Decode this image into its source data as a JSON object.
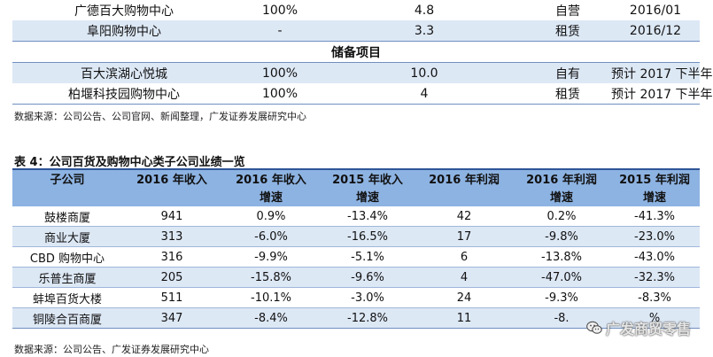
{
  "top_table": {
    "rows": [
      {
        "name": "广德百大购物中心",
        "stake": "100%",
        "area": "4.8",
        "ownership": "自营",
        "opened": "2016/01",
        "style": "white"
      },
      {
        "name": "阜阳购物中心",
        "stake": "-",
        "area": "3.3",
        "ownership": "租赁",
        "opened": "2016/12",
        "style": "blue"
      }
    ],
    "section_header": "储备项目",
    "reserve_rows": [
      {
        "name": "百大滨湖心悦城",
        "stake": "100%",
        "area": "10.0",
        "ownership": "自有",
        "opened": "预计 2017 下半年",
        "style": "blue"
      },
      {
        "name": "柏堰科技园购物中心",
        "stake": "100%",
        "area": "4",
        "ownership": "租赁",
        "opened": "预计 2017 下半年",
        "style": "white"
      }
    ]
  },
  "source_1": "数据来源：公司公告、公司官网、新闻整理，广发证券发展研究中心",
  "table_title": "表 4：公司百货及购物中心类子公司业绩一览",
  "main_table": {
    "headers_line1": [
      "子公司",
      "2016 年收入",
      "2016 年收入",
      "2015 年收入",
      "2016 年利润",
      "2016 年利润",
      "2015 年利润"
    ],
    "headers_line2": [
      "",
      "",
      "增速",
      "增速",
      "",
      "增速",
      "增速"
    ],
    "rows": [
      [
        "鼓楼商厦",
        "941",
        "0.9%",
        "-13.4%",
        "42",
        "0.2%",
        "-41.3%"
      ],
      [
        "商业大厦",
        "313",
        "-6.0%",
        "-16.5%",
        "17",
        "-9.8%",
        "-23.0%"
      ],
      [
        "CBD 购物中心",
        "316",
        "-9.9%",
        "-5.1%",
        "6",
        "-13.8%",
        "-43.0%"
      ],
      [
        "乐普生商厦",
        "205",
        "-15.8%",
        "-9.6%",
        "4",
        "-47.0%",
        "-32.3%"
      ],
      [
        "蚌埠百货大楼",
        "511",
        "-10.1%",
        "-3.0%",
        "24",
        "-9.3%",
        "-8.3%"
      ],
      [
        "铜陵合百商厦",
        "347",
        "-8.4%",
        "-12.8%",
        "11",
        "-8.",
        "%"
      ]
    ]
  },
  "source_2": "数据来源：公司公告、广发证券发展研究中心",
  "watermark": {
    "icon": "wechat-icon",
    "text": "广发商贸零售"
  }
}
